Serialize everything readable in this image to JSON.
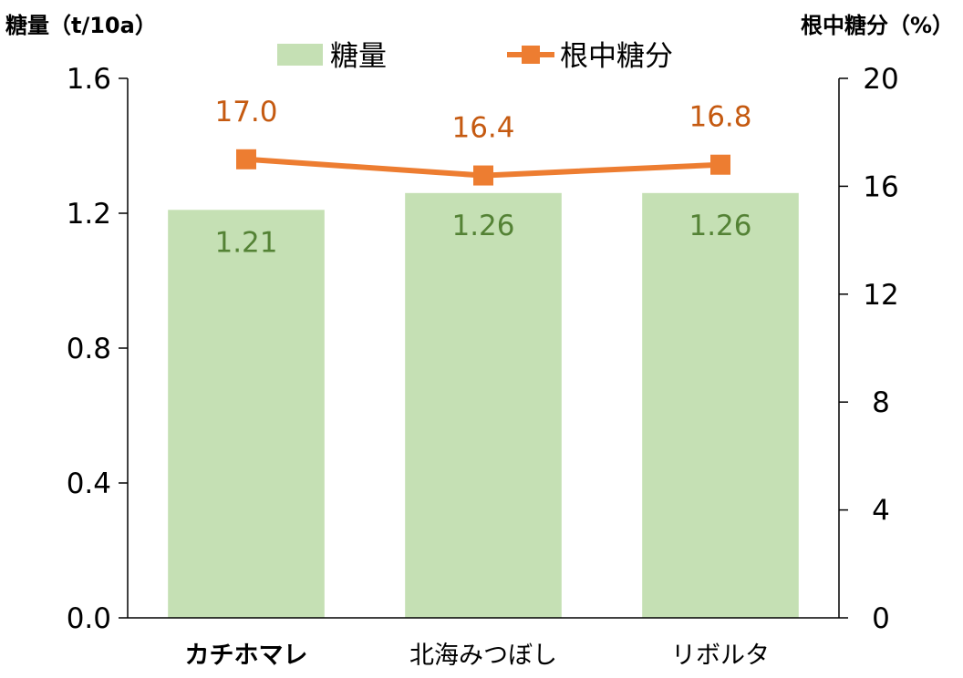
{
  "chart_data": {
    "type": "bar",
    "categories": [
      "カチホマレ",
      "北海みつぼし",
      "リボルタ"
    ],
    "category_bold": [
      true,
      false,
      false
    ],
    "series": [
      {
        "name": "糖量",
        "type": "bar",
        "axis": "left",
        "values": [
          1.21,
          1.26,
          1.26
        ],
        "labels": [
          "1.21",
          "1.26",
          "1.26"
        ],
        "color": "#C5E0B4",
        "label_color": "#548235"
      },
      {
        "name": "根中糖分",
        "type": "line",
        "axis": "right",
        "values": [
          17.0,
          16.4,
          16.8
        ],
        "labels": [
          "17.0",
          "16.4",
          "16.8"
        ],
        "color": "#ED7D31",
        "label_color": "#C55A11"
      }
    ],
    "y_left": {
      "label": "糖量（t/10a）",
      "ylim": [
        0,
        1.6
      ],
      "ticks": [
        "0.0",
        "0.4",
        "0.8",
        "1.2",
        "1.6"
      ]
    },
    "y_right": {
      "label": "根中糖分（%）",
      "ylim": [
        0,
        20
      ],
      "ticks": [
        "0",
        "4",
        "8",
        "12",
        "16",
        "20"
      ]
    },
    "legend_position": "top-center",
    "grid": false
  }
}
